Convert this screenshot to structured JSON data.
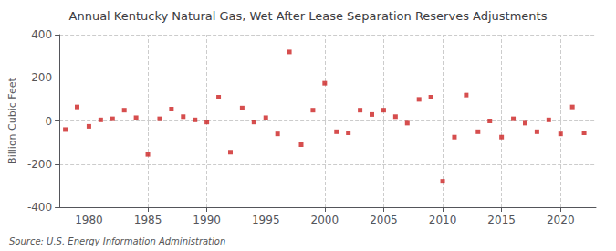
{
  "chart_data": {
    "type": "scatter",
    "title": "Annual Kentucky Natural Gas, Wet After Lease Separation Reserves Adjustments",
    "ylabel": "Billion Cubic Feet",
    "source": "Source: U.S. Energy Information Administration",
    "x": [
      1978,
      1979,
      1980,
      1981,
      1982,
      1983,
      1984,
      1985,
      1986,
      1987,
      1988,
      1989,
      1990,
      1991,
      1992,
      1993,
      1994,
      1995,
      1996,
      1997,
      1998,
      1999,
      2000,
      2001,
      2002,
      2003,
      2004,
      2005,
      2006,
      2007,
      2008,
      2009,
      2010,
      2011,
      2012,
      2013,
      2014,
      2015,
      2016,
      2017,
      2018,
      2019,
      2020,
      2021,
      2022
    ],
    "values": [
      -40,
      65,
      -25,
      5,
      10,
      50,
      15,
      -155,
      10,
      55,
      20,
      5,
      -5,
      110,
      -145,
      60,
      -5,
      15,
      -60,
      320,
      -110,
      50,
      175,
      -50,
      -55,
      50,
      30,
      50,
      20,
      -10,
      100,
      110,
      -280,
      -75,
      120,
      -50,
      0,
      -75,
      10,
      -10,
      -50,
      5,
      -60,
      65,
      -55
    ],
    "color": "#cc2222",
    "marker": "square",
    "xlim": [
      1977.5,
      2023
    ],
    "xticks": [
      1980,
      1985,
      1990,
      1995,
      2000,
      2005,
      2010,
      2015,
      2020
    ],
    "ylim": [
      -400,
      400
    ],
    "yticks": [
      -400,
      -200,
      0,
      200,
      400
    ],
    "grid": true
  }
}
